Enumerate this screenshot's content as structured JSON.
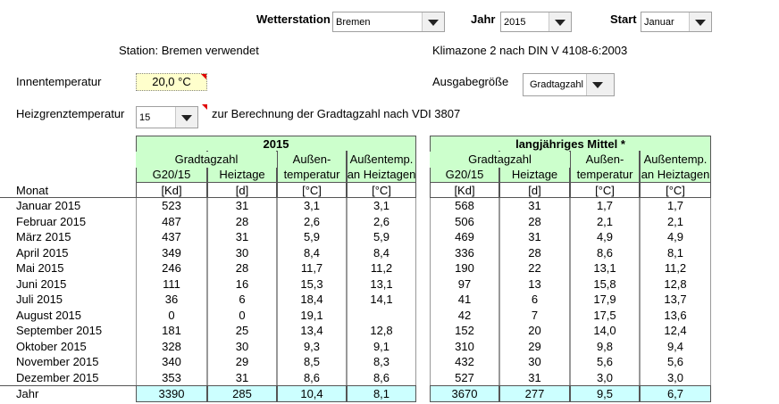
{
  "controls": {
    "wetterstation": {
      "label": "Wetterstation",
      "value": "Bremen"
    },
    "jahr": {
      "label": "Jahr",
      "value": "2015"
    },
    "start": {
      "label": "Start",
      "value": "Januar"
    },
    "station_info": "Station: Bremen verwendet",
    "klimazone": "Klimazone 2 nach DIN V 4108-6:2003",
    "innentemperatur": {
      "label": "Innentemperatur",
      "value": "20,0 °C"
    },
    "ausgabegroesse": {
      "label": "Ausgabegröße",
      "value": "Gradtagzahl"
    },
    "heizgrenztemperatur": {
      "label": "Heizgrenztemperatur",
      "value": "15",
      "note": "zur Berechnung der Gradtagzahl nach VDI 3807"
    }
  },
  "table": {
    "row_header": "Monat",
    "blocks": [
      {
        "title": "2015",
        "group": "Gradtagzahl",
        "head_top": [
          "Außen-",
          "Außentemp."
        ],
        "head": [
          "G20/15",
          "Heiztage",
          "temperatur",
          "an Heiztagen"
        ],
        "units": [
          "[Kd]",
          "[d]",
          "[°C]",
          "[°C]"
        ]
      },
      {
        "title": "langjähriges Mittel *",
        "group": "Gradtagzahl",
        "head_top": [
          "Außen-",
          "Außentemp."
        ],
        "head": [
          "G20/15",
          "Heiztage",
          "temperatur",
          "an Heiztagen"
        ],
        "units": [
          "[Kd]",
          "[d]",
          "[°C]",
          "[°C]"
        ]
      }
    ],
    "rows": [
      {
        "month": "Januar 2015",
        "values": [
          [
            "523",
            "31",
            "3,1",
            "3,1"
          ],
          [
            "568",
            "31",
            "1,7",
            "1,7"
          ]
        ]
      },
      {
        "month": "Februar 2015",
        "values": [
          [
            "487",
            "28",
            "2,6",
            "2,6"
          ],
          [
            "506",
            "28",
            "2,1",
            "2,1"
          ]
        ]
      },
      {
        "month": "März 2015",
        "values": [
          [
            "437",
            "31",
            "5,9",
            "5,9"
          ],
          [
            "469",
            "31",
            "4,9",
            "4,9"
          ]
        ]
      },
      {
        "month": "April 2015",
        "values": [
          [
            "349",
            "30",
            "8,4",
            "8,4"
          ],
          [
            "336",
            "28",
            "8,6",
            "8,1"
          ]
        ]
      },
      {
        "month": "Mai 2015",
        "values": [
          [
            "246",
            "28",
            "11,7",
            "11,2"
          ],
          [
            "190",
            "22",
            "13,1",
            "11,2"
          ]
        ]
      },
      {
        "month": "Juni 2015",
        "values": [
          [
            "111",
            "16",
            "15,3",
            "13,1"
          ],
          [
            "97",
            "13",
            "15,8",
            "12,8"
          ]
        ]
      },
      {
        "month": "Juli 2015",
        "values": [
          [
            "36",
            "6",
            "18,4",
            "14,1"
          ],
          [
            "41",
            "6",
            "17,9",
            "13,7"
          ]
        ]
      },
      {
        "month": "August 2015",
        "values": [
          [
            "0",
            "0",
            "19,1",
            null
          ],
          [
            "42",
            "7",
            "17,5",
            "13,6"
          ]
        ]
      },
      {
        "month": "September 2015",
        "values": [
          [
            "181",
            "25",
            "13,4",
            "12,8"
          ],
          [
            "152",
            "20",
            "14,0",
            "12,4"
          ]
        ]
      },
      {
        "month": "Oktober 2015",
        "values": [
          [
            "328",
            "30",
            "9,3",
            "9,1"
          ],
          [
            "310",
            "29",
            "9,8",
            "9,4"
          ]
        ]
      },
      {
        "month": "November 2015",
        "values": [
          [
            "340",
            "29",
            "8,5",
            "8,3"
          ],
          [
            "432",
            "30",
            "5,6",
            "5,6"
          ]
        ]
      },
      {
        "month": "Dezember 2015",
        "values": [
          [
            "353",
            "31",
            "8,6",
            "8,6"
          ],
          [
            "527",
            "31",
            "3,0",
            "3,0"
          ]
        ]
      }
    ],
    "total": {
      "label": "Jahr",
      "values": [
        [
          "3390",
          "285",
          "10,4",
          "8,1"
        ],
        [
          "3670",
          "277",
          "9,5",
          "6,7"
        ]
      ]
    }
  }
}
